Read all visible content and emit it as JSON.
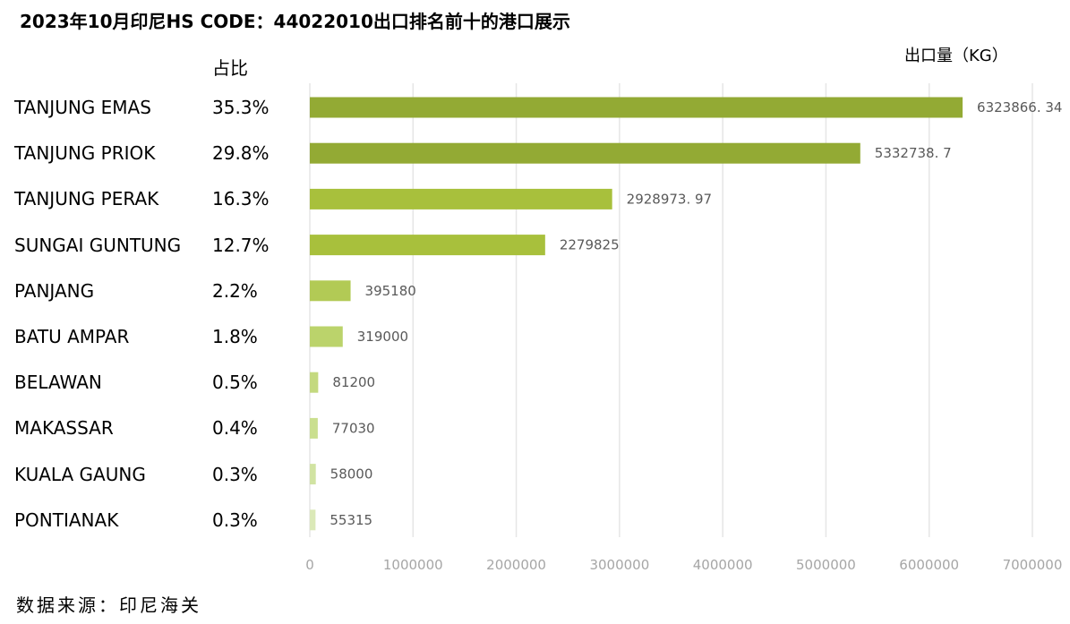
{
  "header": {
    "title": "2023年10月印尼HS CODE：44022010出口排名前十的港口展示",
    "unit_label": "出口量（KG）",
    "share_header": "占比"
  },
  "footer": {
    "source": "数据来源：印尼海关"
  },
  "chart_data": {
    "type": "bar",
    "orientation": "horizontal",
    "title": "2023年10月印尼HS CODE：44022010出口排名前十的港口展示",
    "xlabel": "出口量（KG）",
    "ylabel": "",
    "xlim": [
      0,
      7000000
    ],
    "x_ticks": [
      "0",
      "1000000",
      "2000000",
      "3000000",
      "4000000",
      "5000000",
      "6000000",
      "7000000"
    ],
    "grid": "vertical",
    "categories": [
      "TANJUNG EMAS",
      "TANJUNG PRIOK",
      "TANJUNG PERAK",
      "SUNGAI GUNTUNG",
      "PANJANG",
      "BATU AMPAR",
      "BELAWAN",
      "MAKASSAR",
      "KUALA GAUNG",
      "PONTIANAK"
    ],
    "shares": [
      "35.3%",
      "29.8%",
      "16.3%",
      "12.7%",
      "2.2%",
      "1.8%",
      "0.5%",
      "0.4%",
      "0.3%",
      "0.3%"
    ],
    "values": [
      6323866.34,
      5332738.7,
      2928973.97,
      2279825,
      395180,
      319000,
      81200,
      77030,
      58000,
      55315
    ],
    "value_labels": [
      "6323866. 34",
      "5332738. 7",
      "2928973. 97",
      "2279825",
      "395180",
      "319000",
      "81200",
      "77030",
      "58000",
      "55315"
    ],
    "colors": [
      "#93aa34",
      "#93aa34",
      "#a8c03c",
      "#a8c03c",
      "#b2ca55",
      "#bbd36b",
      "#c4d97f",
      "#cadf8f",
      "#d1e3a2",
      "#dbe9b8"
    ]
  }
}
